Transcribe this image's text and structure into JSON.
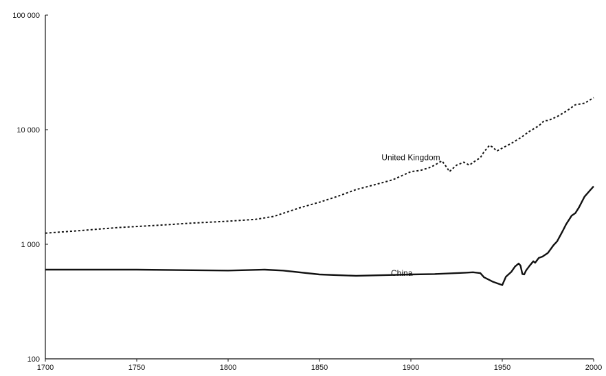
{
  "chart_data": {
    "type": "line",
    "title": "",
    "xlabel": "",
    "ylabel": "",
    "x_scale": "linear",
    "y_scale": "log",
    "xlim": [
      1700,
      2000
    ],
    "ylim": [
      100,
      100000
    ],
    "x_ticks": [
      "1700",
      "1750",
      "1800",
      "1850",
      "1900",
      "1950",
      "2000"
    ],
    "y_ticks": [
      "100 000",
      "10 000",
      "1 000",
      "100"
    ],
    "grid": false,
    "legend": "none",
    "series": [
      {
        "name": "United Kingdom",
        "style": "dotted",
        "color": "#111111",
        "label_at": [
          1900,
          5400
        ],
        "points": [
          [
            1700,
            1250
          ],
          [
            1720,
            1320
          ],
          [
            1740,
            1400
          ],
          [
            1760,
            1460
          ],
          [
            1780,
            1530
          ],
          [
            1800,
            1590
          ],
          [
            1815,
            1650
          ],
          [
            1825,
            1750
          ],
          [
            1840,
            2100
          ],
          [
            1850,
            2330
          ],
          [
            1860,
            2620
          ],
          [
            1870,
            3000
          ],
          [
            1880,
            3300
          ],
          [
            1890,
            3650
          ],
          [
            1900,
            4300
          ],
          [
            1905,
            4400
          ],
          [
            1910,
            4650
          ],
          [
            1913,
            4900
          ],
          [
            1917,
            5350
          ],
          [
            1920,
            4600
          ],
          [
            1921,
            4300
          ],
          [
            1925,
            4900
          ],
          [
            1929,
            5200
          ],
          [
            1932,
            4900
          ],
          [
            1935,
            5300
          ],
          [
            1938,
            5700
          ],
          [
            1940,
            6400
          ],
          [
            1943,
            7300
          ],
          [
            1945,
            7000
          ],
          [
            1947,
            6500
          ],
          [
            1950,
            6900
          ],
          [
            1955,
            7600
          ],
          [
            1960,
            8500
          ],
          [
            1965,
            9700
          ],
          [
            1970,
            10800
          ],
          [
            1973,
            12000
          ],
          [
            1975,
            12000
          ],
          [
            1980,
            13000
          ],
          [
            1985,
            14500
          ],
          [
            1990,
            16500
          ],
          [
            1995,
            17000
          ],
          [
            2000,
            19000
          ]
        ]
      },
      {
        "name": "China",
        "style": "solid",
        "color": "#111111",
        "label_at": [
          1895,
          530
        ],
        "points": [
          [
            1700,
            600
          ],
          [
            1750,
            600
          ],
          [
            1800,
            590
          ],
          [
            1820,
            600
          ],
          [
            1830,
            590
          ],
          [
            1850,
            545
          ],
          [
            1870,
            530
          ],
          [
            1890,
            540
          ],
          [
            1900,
            545
          ],
          [
            1913,
            550
          ],
          [
            1930,
            565
          ],
          [
            1934,
            570
          ],
          [
            1938,
            560
          ],
          [
            1940,
            515
          ],
          [
            1945,
            470
          ],
          [
            1950,
            440
          ],
          [
            1952,
            520
          ],
          [
            1955,
            575
          ],
          [
            1957,
            640
          ],
          [
            1959,
            680
          ],
          [
            1960,
            650
          ],
          [
            1961,
            550
          ],
          [
            1962,
            545
          ],
          [
            1963,
            590
          ],
          [
            1965,
            650
          ],
          [
            1967,
            710
          ],
          [
            1968,
            690
          ],
          [
            1970,
            760
          ],
          [
            1972,
            780
          ],
          [
            1975,
            840
          ],
          [
            1978,
            980
          ],
          [
            1980,
            1060
          ],
          [
            1983,
            1300
          ],
          [
            1985,
            1500
          ],
          [
            1988,
            1780
          ],
          [
            1990,
            1870
          ],
          [
            1992,
            2100
          ],
          [
            1995,
            2600
          ],
          [
            1998,
            2950
          ],
          [
            2000,
            3200
          ]
        ]
      }
    ]
  }
}
